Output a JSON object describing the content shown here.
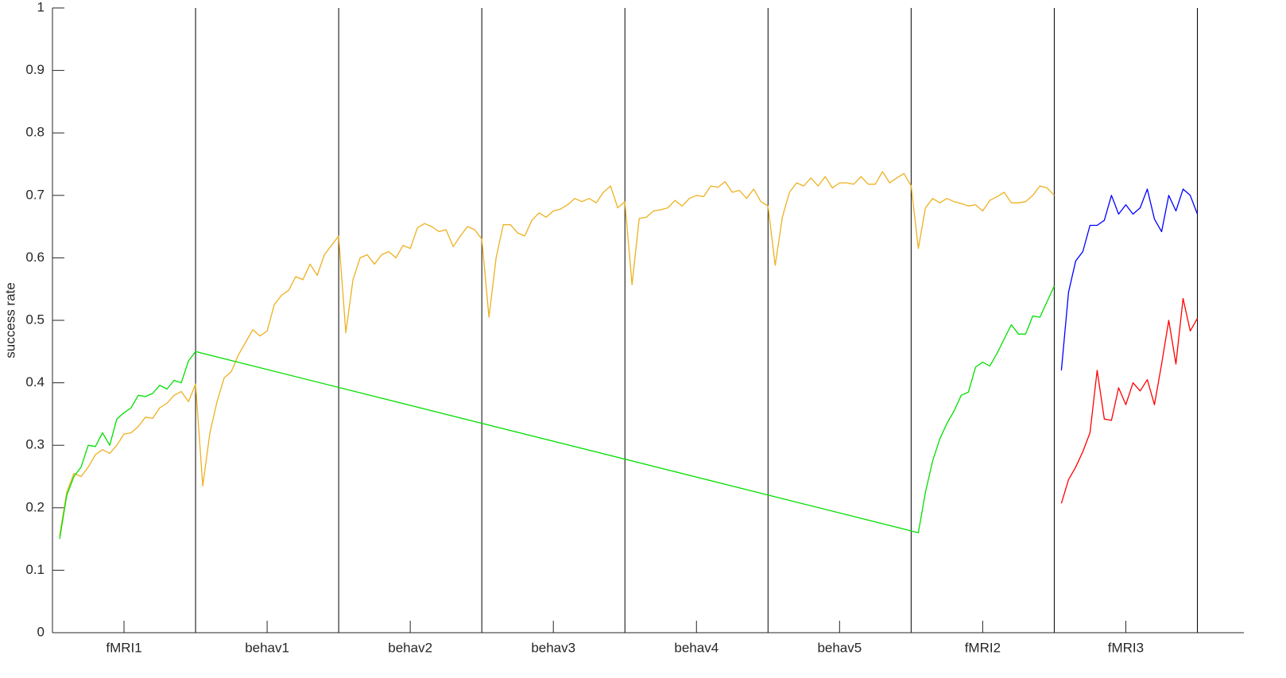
{
  "chart_data": {
    "type": "line",
    "ylabel": "success rate",
    "xlim": [
      0,
      166.5
    ],
    "ylim": [
      0,
      1
    ],
    "yticks": [
      0,
      {
        "value": 0.1,
        "label": "0.1"
      },
      {
        "value": 0.2,
        "label": "0.2"
      },
      {
        "value": 0.3,
        "label": "0.3"
      },
      {
        "value": 0.4,
        "label": "0.4"
      },
      {
        "value": 0.5,
        "label": "0.5"
      },
      {
        "value": 0.6,
        "label": "0.6"
      },
      {
        "value": 0.7,
        "label": "0.7"
      },
      {
        "value": 0.8,
        "label": "0.8"
      },
      {
        "value": 0.9,
        "label": "0.9"
      },
      1
    ],
    "xticks": [
      {
        "value": 10,
        "label": "fMRI1"
      },
      {
        "value": 30,
        "label": "behav1"
      },
      {
        "value": 50,
        "label": "behav2"
      },
      {
        "value": 70,
        "label": "behav3"
      },
      {
        "value": 90,
        "label": "behav4"
      },
      {
        "value": 110,
        "label": "behav5"
      },
      {
        "value": 130,
        "label": "fMRI2"
      },
      {
        "value": 150,
        "label": "fMRI3"
      }
    ],
    "session_boundaries": [
      20,
      40,
      60,
      80,
      100,
      120,
      140,
      160
    ],
    "boundary_color": "#000000",
    "series": [
      {
        "color": "#edb120",
        "x": [
          1,
          2,
          3,
          4,
          5,
          6,
          7,
          8,
          9,
          10,
          11,
          12,
          13,
          14,
          15,
          16,
          17,
          18,
          19,
          20,
          21,
          22,
          23,
          24,
          25,
          26,
          27,
          28,
          29,
          30,
          31,
          32,
          33,
          34,
          35,
          36,
          37,
          38,
          39,
          40,
          41,
          42,
          43,
          44,
          45,
          46,
          47,
          48,
          49,
          50,
          51,
          52,
          53,
          54,
          55,
          56,
          57,
          58,
          59,
          60,
          61,
          62,
          63,
          64,
          65,
          66,
          67,
          68,
          69,
          70,
          71,
          72,
          73,
          74,
          75,
          76,
          77,
          78,
          79,
          80,
          81,
          82,
          83,
          84,
          85,
          86,
          87,
          88,
          89,
          90,
          91,
          92,
          93,
          94,
          95,
          96,
          97,
          98,
          99,
          100,
          101,
          102,
          103,
          104,
          105,
          106,
          107,
          108,
          109,
          110,
          111,
          112,
          113,
          114,
          115,
          116,
          117,
          118,
          119,
          120,
          121,
          122,
          123,
          124,
          125,
          126,
          127,
          128,
          129,
          130,
          131,
          132,
          133,
          134,
          135,
          136,
          137,
          138,
          139,
          140
        ],
        "values": [
          0.155,
          0.225,
          0.255,
          0.25,
          0.265,
          0.285,
          0.293,
          0.287,
          0.3,
          0.318,
          0.32,
          0.33,
          0.345,
          0.343,
          0.36,
          0.367,
          0.38,
          0.386,
          0.37,
          0.398,
          0.235,
          0.32,
          0.37,
          0.408,
          0.418,
          0.445,
          0.465,
          0.485,
          0.475,
          0.483,
          0.525,
          0.54,
          0.548,
          0.57,
          0.565,
          0.59,
          0.572,
          0.605,
          0.62,
          0.635,
          0.48,
          0.565,
          0.6,
          0.605,
          0.59,
          0.605,
          0.61,
          0.6,
          0.62,
          0.615,
          0.648,
          0.655,
          0.65,
          0.642,
          0.645,
          0.618,
          0.635,
          0.65,
          0.645,
          0.63,
          0.505,
          0.6,
          0.653,
          0.653,
          0.64,
          0.635,
          0.66,
          0.672,
          0.665,
          0.675,
          0.678,
          0.685,
          0.695,
          0.69,
          0.695,
          0.688,
          0.705,
          0.715,
          0.68,
          0.69,
          0.557,
          0.663,
          0.665,
          0.675,
          0.677,
          0.68,
          0.692,
          0.683,
          0.695,
          0.7,
          0.698,
          0.715,
          0.713,
          0.722,
          0.705,
          0.708,
          0.695,
          0.71,
          0.69,
          0.683,
          0.588,
          0.665,
          0.705,
          0.72,
          0.715,
          0.728,
          0.715,
          0.73,
          0.712,
          0.72,
          0.72,
          0.718,
          0.73,
          0.718,
          0.718,
          0.738,
          0.72,
          0.728,
          0.735,
          0.715,
          0.615,
          0.68,
          0.695,
          0.688,
          0.695,
          0.69,
          0.687,
          0.683,
          0.685,
          0.675,
          0.692,
          0.698,
          0.705,
          0.688,
          0.688,
          0.69,
          0.7,
          0.715,
          0.712,
          0.7
        ]
      },
      {
        "color": "#00e000",
        "x": [
          1,
          2,
          3,
          4,
          5,
          6,
          7,
          8,
          9,
          10,
          11,
          12,
          13,
          14,
          15,
          16,
          17,
          18,
          19,
          20,
          121,
          122,
          123,
          124,
          125,
          126,
          127,
          128,
          129,
          130,
          131,
          132,
          133,
          134,
          135,
          136,
          137,
          138,
          139,
          140
        ],
        "values": [
          0.15,
          0.22,
          0.25,
          0.265,
          0.3,
          0.298,
          0.32,
          0.3,
          0.342,
          0.352,
          0.36,
          0.38,
          0.378,
          0.383,
          0.396,
          0.39,
          0.404,
          0.4,
          0.435,
          0.45,
          0.16,
          0.225,
          0.275,
          0.31,
          0.335,
          0.355,
          0.38,
          0.385,
          0.425,
          0.433,
          0.427,
          0.447,
          0.47,
          0.493,
          0.478,
          0.478,
          0.507,
          0.505,
          0.53,
          0.555
        ]
      },
      {
        "color": "#0000ff",
        "x": [
          141,
          142,
          143,
          144,
          145,
          146,
          147,
          148,
          149,
          150,
          151,
          152,
          153,
          154,
          155,
          156,
          157,
          158,
          159,
          160
        ],
        "values": [
          0.42,
          0.545,
          0.595,
          0.61,
          0.652,
          0.652,
          0.66,
          0.7,
          0.67,
          0.685,
          0.67,
          0.68,
          0.71,
          0.662,
          0.642,
          0.7,
          0.675,
          0.71,
          0.7,
          0.67
        ]
      },
      {
        "color": "#ff0000",
        "x": [
          141,
          142,
          143,
          144,
          145,
          146,
          147,
          148,
          149,
          150,
          151,
          152,
          153,
          154,
          155,
          156,
          157,
          158,
          159,
          160
        ],
        "values": [
          0.207,
          0.245,
          0.265,
          0.29,
          0.32,
          0.42,
          0.342,
          0.34,
          0.392,
          0.365,
          0.4,
          0.387,
          0.405,
          0.365,
          0.43,
          0.5,
          0.43,
          0.535,
          0.483,
          0.503
        ]
      }
    ]
  }
}
